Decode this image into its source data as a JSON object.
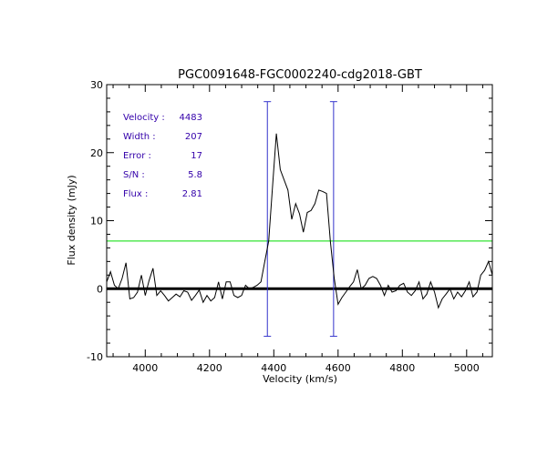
{
  "chart_data": {
    "type": "line",
    "title": "PGC0091648-FGC0002240-cdg2018-GBT",
    "xlabel": "Velocity (km/s)",
    "ylabel": "Flux density (mJy)",
    "xlim": [
      3880,
      5080
    ],
    "ylim": [
      -10,
      30
    ],
    "x_ticks": [
      4000,
      4200,
      4400,
      4600,
      4800,
      5000
    ],
    "y_ticks": [
      -10,
      0,
      10,
      20,
      30
    ],
    "grid": false,
    "series": [
      {
        "type": "line",
        "color": "#000000",
        "points": [
          [
            3880,
            1.0
          ],
          [
            3892,
            2.5
          ],
          [
            3904,
            0.5
          ],
          [
            3916,
            0.0
          ],
          [
            3928,
            1.5
          ],
          [
            3940,
            3.8
          ],
          [
            3952,
            -1.5
          ],
          [
            3964,
            -1.3
          ],
          [
            3976,
            -0.5
          ],
          [
            3988,
            2.0
          ],
          [
            4000,
            -1.0
          ],
          [
            4012,
            1.2
          ],
          [
            4024,
            3.0
          ],
          [
            4036,
            -1.0
          ],
          [
            4048,
            -0.3
          ],
          [
            4060,
            -1.0
          ],
          [
            4072,
            -1.8
          ],
          [
            4084,
            -1.3
          ],
          [
            4096,
            -0.8
          ],
          [
            4108,
            -1.2
          ],
          [
            4120,
            -0.3
          ],
          [
            4132,
            -0.5
          ],
          [
            4144,
            -1.7
          ],
          [
            4156,
            -1.0
          ],
          [
            4168,
            -0.2
          ],
          [
            4180,
            -2.0
          ],
          [
            4192,
            -1.0
          ],
          [
            4204,
            -1.8
          ],
          [
            4216,
            -1.3
          ],
          [
            4228,
            1.0
          ],
          [
            4240,
            -1.5
          ],
          [
            4252,
            1.0
          ],
          [
            4264,
            1.0
          ],
          [
            4276,
            -1.0
          ],
          [
            4288,
            -1.3
          ],
          [
            4300,
            -1.0
          ],
          [
            4312,
            0.5
          ],
          [
            4324,
            0.0
          ],
          [
            4336,
            0.2
          ],
          [
            4348,
            0.5
          ],
          [
            4360,
            1.0
          ],
          [
            4372,
            4.0
          ],
          [
            4384,
            7.0
          ],
          [
            4396,
            15.0
          ],
          [
            4408,
            22.8
          ],
          [
            4420,
            17.5
          ],
          [
            4432,
            16.0
          ],
          [
            4444,
            14.5
          ],
          [
            4456,
            10.2
          ],
          [
            4468,
            12.5
          ],
          [
            4480,
            11.0
          ],
          [
            4492,
            8.3
          ],
          [
            4504,
            11.2
          ],
          [
            4516,
            11.5
          ],
          [
            4528,
            12.5
          ],
          [
            4540,
            14.5
          ],
          [
            4552,
            14.3
          ],
          [
            4564,
            14.0
          ],
          [
            4576,
            7.0
          ],
          [
            4588,
            1.5
          ],
          [
            4600,
            -2.3
          ],
          [
            4612,
            -1.3
          ],
          [
            4624,
            -0.5
          ],
          [
            4636,
            0.3
          ],
          [
            4648,
            1.0
          ],
          [
            4660,
            2.8
          ],
          [
            4672,
            0.0
          ],
          [
            4684,
            0.5
          ],
          [
            4696,
            1.5
          ],
          [
            4708,
            1.8
          ],
          [
            4720,
            1.5
          ],
          [
            4732,
            0.5
          ],
          [
            4744,
            -1.0
          ],
          [
            4756,
            0.5
          ],
          [
            4768,
            -0.5
          ],
          [
            4780,
            -0.3
          ],
          [
            4792,
            0.5
          ],
          [
            4804,
            0.8
          ],
          [
            4816,
            -0.5
          ],
          [
            4828,
            -1.0
          ],
          [
            4840,
            -0.3
          ],
          [
            4852,
            1.0
          ],
          [
            4864,
            -1.5
          ],
          [
            4876,
            -0.8
          ],
          [
            4888,
            1.0
          ],
          [
            4900,
            -0.5
          ],
          [
            4912,
            -2.8
          ],
          [
            4924,
            -1.5
          ],
          [
            4936,
            -0.8
          ],
          [
            4948,
            0.0
          ],
          [
            4960,
            -1.5
          ],
          [
            4972,
            -0.5
          ],
          [
            4984,
            -1.2
          ],
          [
            4996,
            -0.3
          ],
          [
            5008,
            1.0
          ],
          [
            5020,
            -1.2
          ],
          [
            5032,
            -0.5
          ],
          [
            5044,
            2.0
          ],
          [
            5056,
            2.7
          ],
          [
            5068,
            4.0
          ],
          [
            5080,
            2.0
          ]
        ]
      }
    ],
    "horizontal_lines": [
      {
        "y": 0,
        "color": "#000000",
        "style": "thick"
      },
      {
        "y": 7,
        "color": "#00dd00",
        "style": "thin"
      }
    ],
    "vertical_markers": [
      {
        "x": 4380,
        "y_range": [
          -7,
          27.5
        ],
        "color": "#3333cc"
      },
      {
        "x": 4586,
        "y_range": [
          -7,
          27.5
        ],
        "color": "#3333cc"
      }
    ],
    "annotation_color": "#3300aa",
    "annotations": [
      {
        "label": "Velocity :",
        "value": "4483"
      },
      {
        "label": "Width :",
        "value": "207"
      },
      {
        "label": "Error :",
        "value": "17"
      },
      {
        "label": "S/N :",
        "value": "5.8"
      },
      {
        "label": "Flux :",
        "value": "2.81"
      }
    ]
  }
}
